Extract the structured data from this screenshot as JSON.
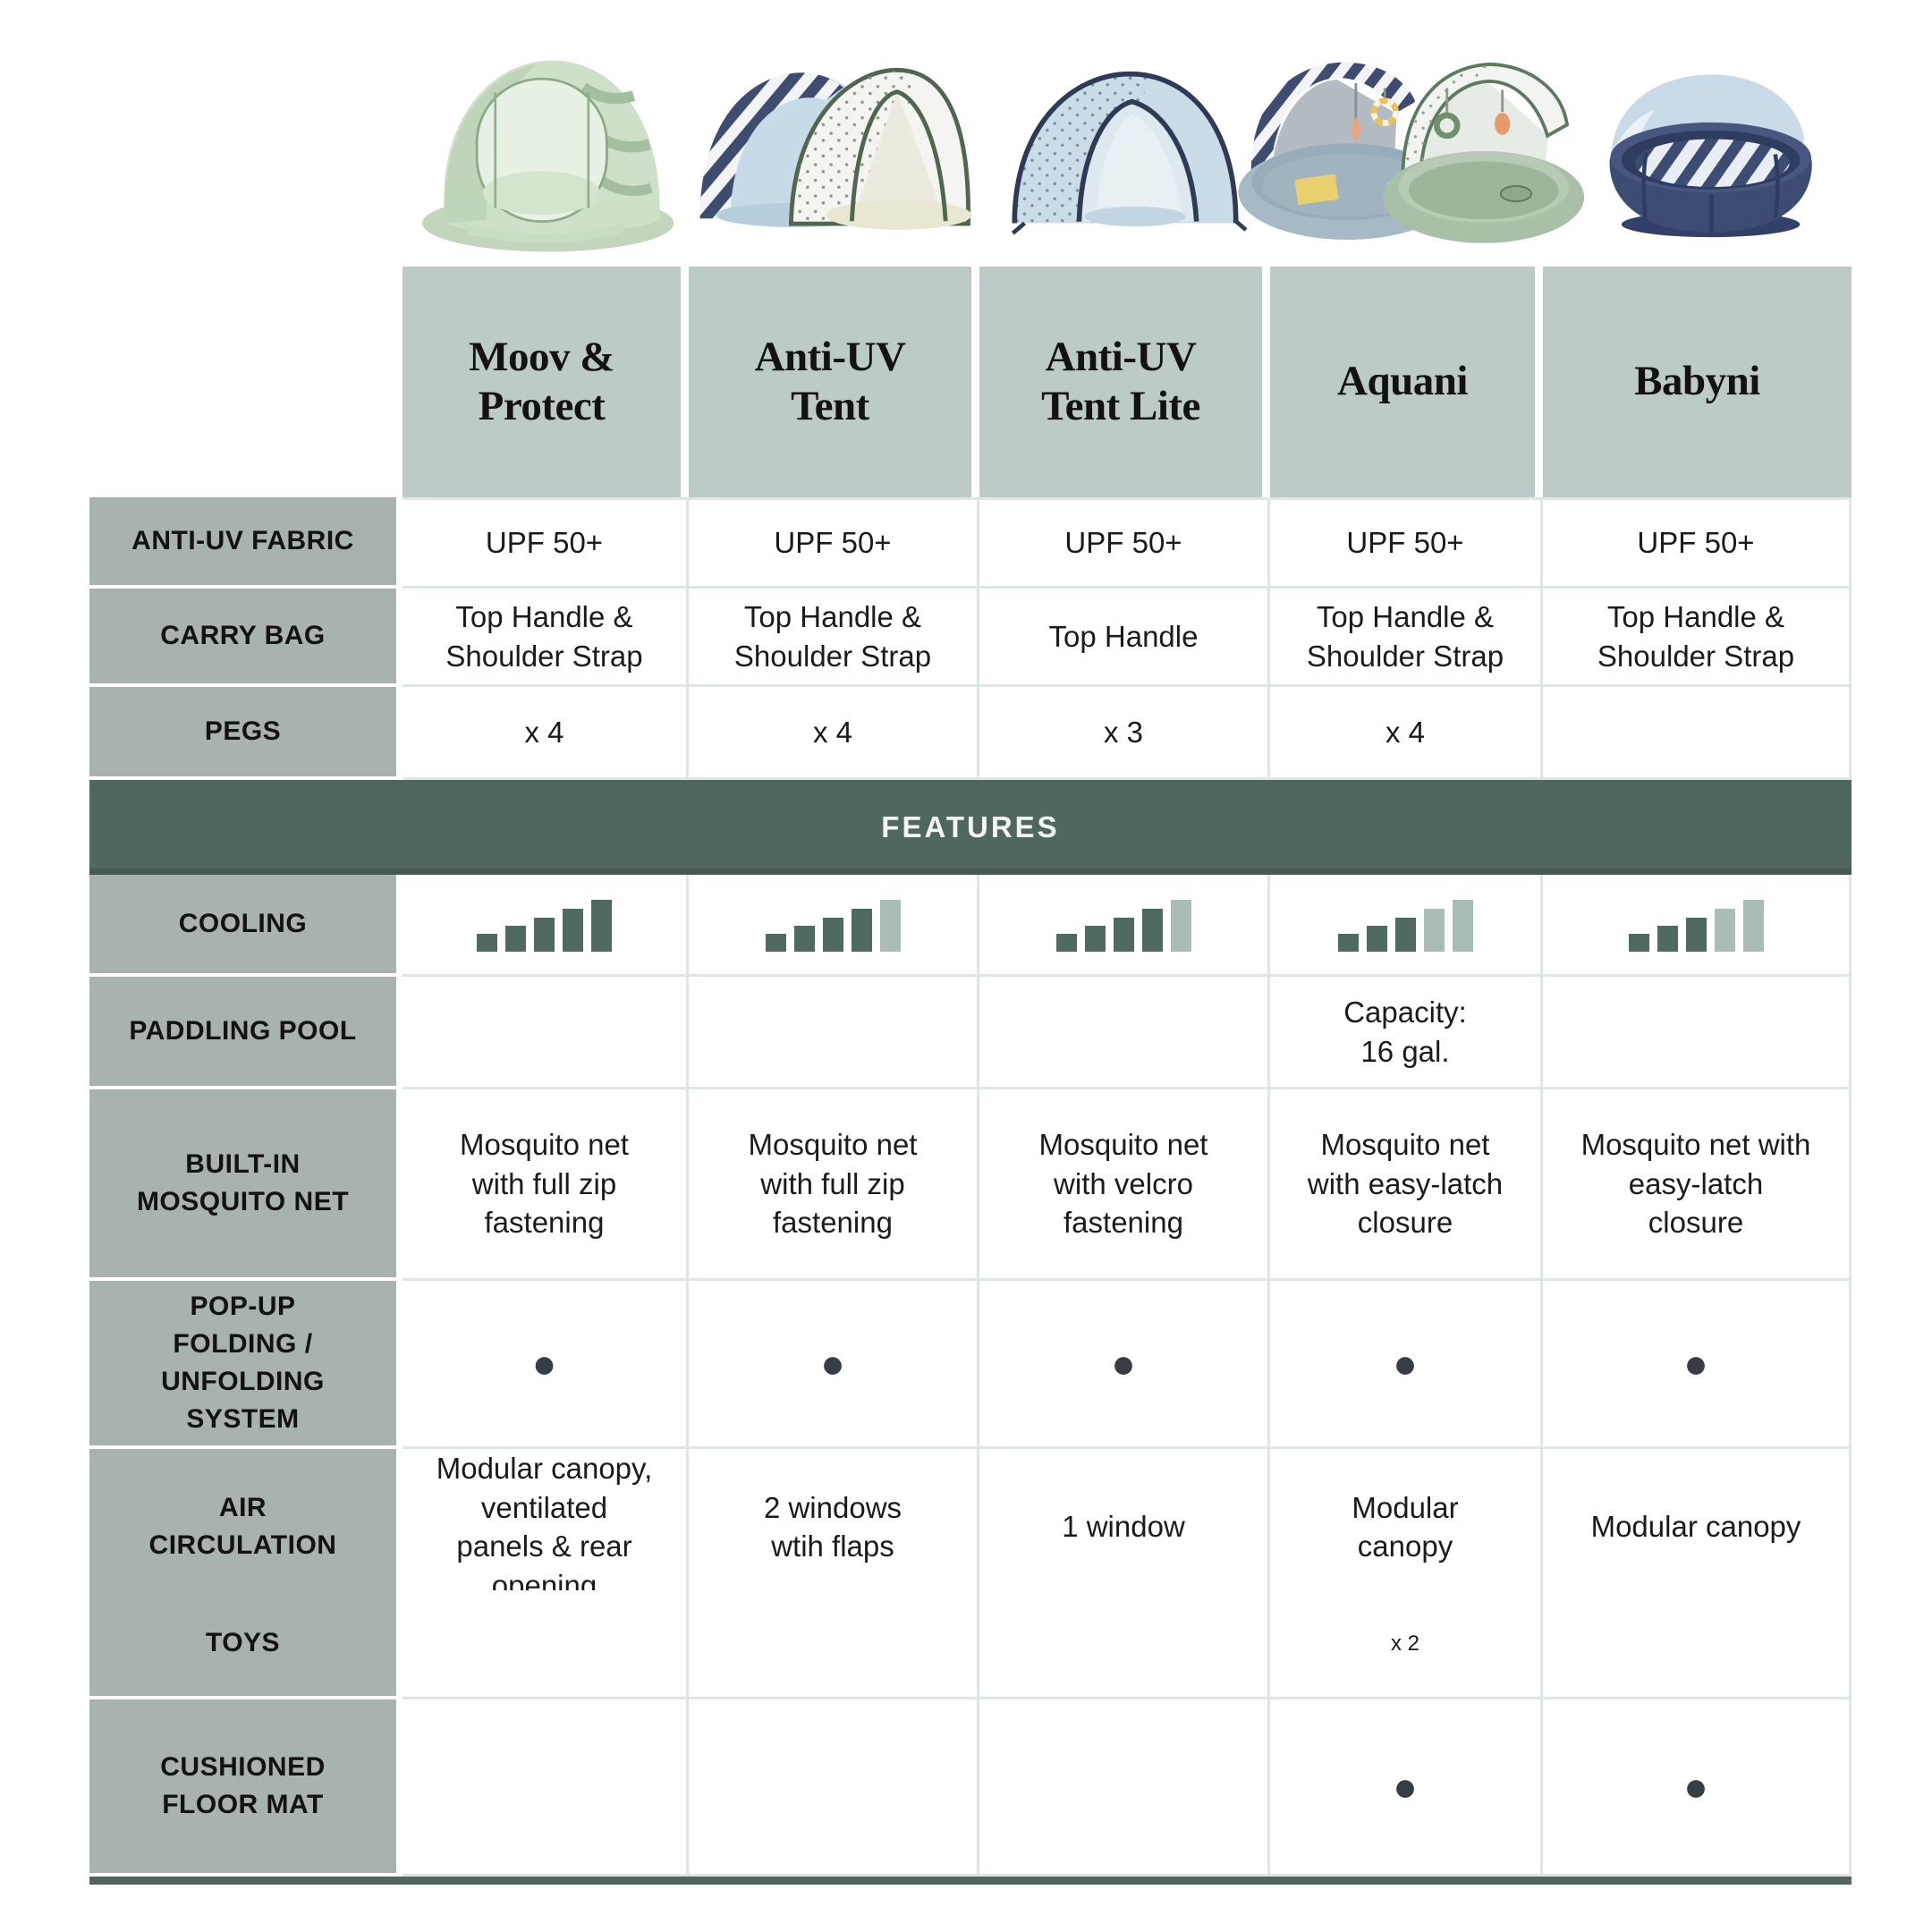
{
  "colors": {
    "header_cell_bg": "#bccbc7",
    "row_label_bg": "#a8b2ae",
    "features_bar_bg": "#4f675e",
    "cooling_bar_filled": "#4e6a61",
    "cooling_bar_empty": "#a9bdb6",
    "cell_border": "#dfe7e3",
    "dot": "#363d44",
    "bottom_rule": "#52665e"
  },
  "products": [
    {
      "name": "Moov &\nProtect",
      "image": "moov-protect-green-pop-up-tent"
    },
    {
      "name": "Anti-UV\nTent",
      "image": "anti-uv-tent-striped-and-dotted"
    },
    {
      "name": "Anti-UV\nTent Lite",
      "image": "anti-uv-tent-lite-blue-dome"
    },
    {
      "name": "Aquani",
      "image": "aquani-pool-tents-pair"
    },
    {
      "name": "Babyni",
      "image": "babyni-navy-playpen"
    }
  ],
  "table": {
    "features_header": "FEATURES",
    "rows": [
      {
        "label": "ANTI-UV FABRIC",
        "cells": [
          "UPF 50+",
          "UPF 50+",
          "UPF 50+",
          "UPF 50+",
          "UPF 50+"
        ]
      },
      {
        "label": "CARRY BAG",
        "cells": [
          "Top Handle &\nShoulder Strap",
          "Top Handle &\nShoulder Strap",
          "Top Handle",
          "Top Handle &\nShoulder Strap",
          "Top Handle &\nShoulder Strap"
        ]
      },
      {
        "label": "PEGS",
        "cells": [
          "x 4",
          "x 4",
          "x 3",
          "x 4",
          ""
        ]
      },
      {
        "label": "COOLING",
        "cooling_levels": [
          5,
          4,
          4,
          3,
          3
        ],
        "max_level": 5
      },
      {
        "label": "PADDLING POOL",
        "cells": [
          "",
          "",
          "",
          "Capacity:\n16 gal.",
          ""
        ]
      },
      {
        "label": "BUILT-IN\nMOSQUITO NET",
        "cells": [
          "Mosquito net\nwith full zip\nfastening",
          "Mosquito net\nwith full zip\nfastening",
          "Mosquito net\nwith velcro\nfastening",
          "Mosquito net\nwith easy-latch\nclosure",
          "Mosquito net with\neasy-latch\nclosure"
        ]
      },
      {
        "label": "POP-UP\nFOLDING /\nUNFOLDING\nSYSTEM",
        "cells": [
          "●",
          "●",
          "●",
          "●",
          "●"
        ]
      },
      {
        "label": "AIR\nCIRCULATION",
        "cells": [
          "Modular canopy,\nventilated\npanels & rear\nopening",
          "2 windows\nwtih flaps",
          "1 window",
          "Modular\ncanopy",
          "Modular canopy"
        ]
      },
      {
        "label": "TOYS",
        "cells": [
          "",
          "",
          "",
          "x 2",
          ""
        ]
      },
      {
        "label": "CUSHIONED\nFLOOR MAT",
        "cells": [
          "",
          "",
          "",
          "●",
          "●"
        ]
      }
    ]
  }
}
